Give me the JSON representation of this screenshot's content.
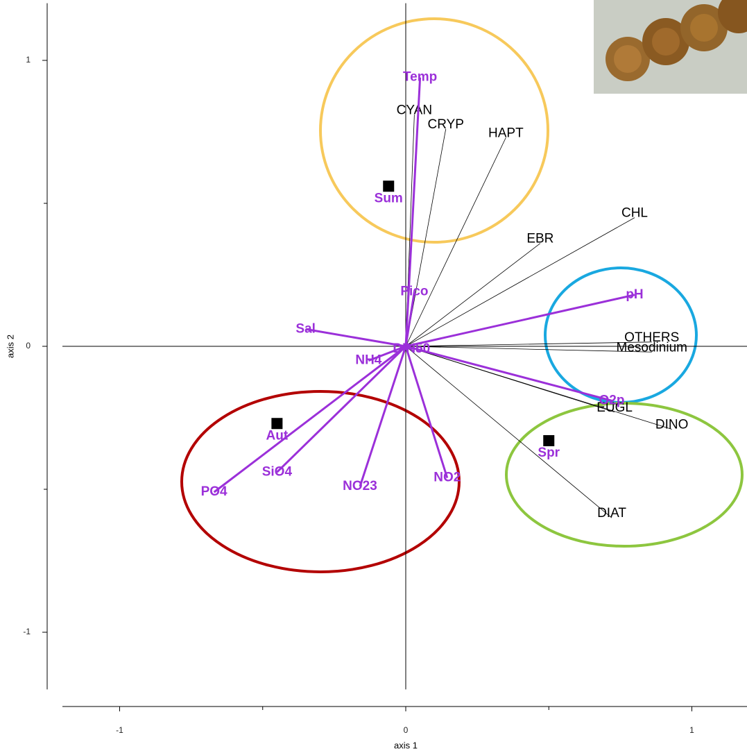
{
  "chart_data": {
    "type": "biplot",
    "xlabel": "axis 1",
    "ylabel": "axis 2",
    "xlim": [
      -1.2,
      1.2
    ],
    "ylim": [
      -1.2,
      1.2
    ],
    "xticks": [
      -1,
      0,
      1
    ],
    "yticks": [
      -1,
      0,
      1
    ],
    "xminor": [
      -0.5,
      0.5
    ],
    "yminor": [
      -0.5,
      0.5
    ],
    "species": {
      "color": "#000000",
      "labels": [
        "CYAN",
        "CRYP",
        "HAPT",
        "CHL",
        "EBR",
        "OTHERS",
        "Mesodinium",
        "EUGL",
        "DINO",
        "DIAT"
      ],
      "x": [
        0.03,
        0.14,
        0.35,
        0.8,
        0.47,
        0.86,
        0.86,
        0.73,
        0.93,
        0.72
      ],
      "y": [
        0.81,
        0.76,
        0.73,
        0.45,
        0.36,
        0.015,
        -0.02,
        -0.23,
        -0.29,
        -0.6
      ]
    },
    "environment": {
      "color": "#9b30d9",
      "labels": [
        "Temp",
        "Pico",
        "pH",
        "Sal",
        "NH4",
        "DIN50",
        "O2p",
        "PO4",
        "SiO4",
        "NO23",
        "NO2"
      ],
      "x": [
        0.05,
        0.03,
        0.8,
        -0.35,
        -0.13,
        0.02,
        0.72,
        -0.67,
        -0.45,
        -0.16,
        0.145
      ],
      "y": [
        0.94,
        0.19,
        0.18,
        0.06,
        -0.05,
        -0.01,
        -0.19,
        -0.51,
        -0.44,
        -0.49,
        -0.46
      ]
    },
    "samples": {
      "color": "#000000",
      "label_color": "#9b30d9",
      "labels": [
        "Sum",
        "Aut",
        "Spr"
      ],
      "x": [
        -0.06,
        -0.45,
        0.5
      ],
      "y": [
        0.56,
        -0.27,
        -0.33
      ]
    }
  }
}
